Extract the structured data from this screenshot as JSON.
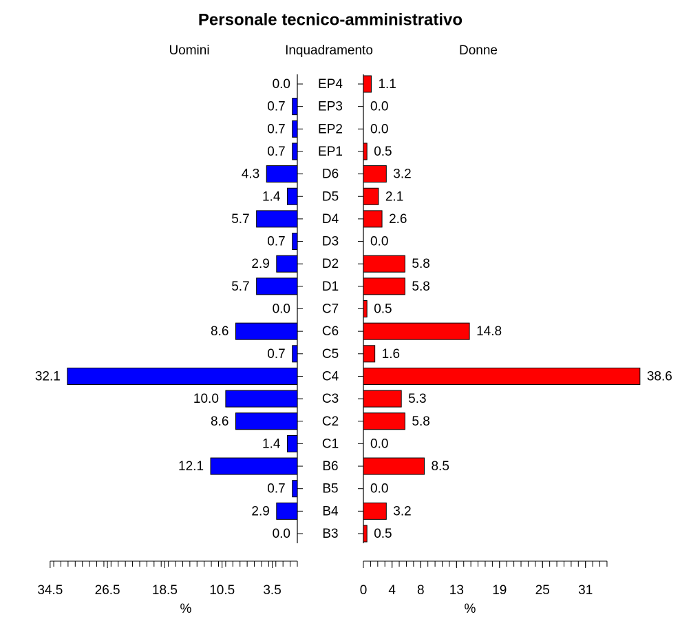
{
  "chart_data": {
    "type": "pyramid",
    "title": "Personale tecnico-amministrativo",
    "category_label": "Inquadramento",
    "categories": [
      "EP4",
      "EP3",
      "EP2",
      "EP1",
      "D6",
      "D5",
      "D4",
      "D3",
      "D2",
      "D1",
      "C7",
      "C6",
      "C5",
      "C4",
      "C3",
      "C2",
      "C1",
      "B6",
      "B5",
      "B4",
      "B3"
    ],
    "minor_tick_step": 1,
    "series": [
      {
        "name": "Uomini",
        "side": "left",
        "color": "#0000ff",
        "values": [
          0.0,
          0.7,
          0.7,
          0.7,
          4.3,
          1.4,
          5.7,
          0.7,
          2.9,
          5.7,
          0.0,
          8.6,
          0.7,
          32.1,
          10.0,
          8.6,
          1.4,
          12.1,
          0.7,
          2.9,
          0.0
        ],
        "value_labels": [
          "0.0",
          "0.7",
          "0.7",
          "0.7",
          "4.3",
          "1.4",
          "5.7",
          "0.7",
          "2.9",
          "5.7",
          "0.0",
          "8.6",
          "0.7",
          "32.1",
          "10.0",
          "8.6",
          "1.4",
          "12.1",
          "0.7",
          "2.9",
          "0.0"
        ],
        "xlim": [
          0,
          34.5
        ],
        "xticks": [
          34.5,
          26.5,
          18.5,
          10.5,
          3.5
        ],
        "xlabel": "%"
      },
      {
        "name": "Donne",
        "side": "right",
        "color": "#ff0000",
        "values": [
          1.1,
          0.0,
          0.0,
          0.5,
          3.2,
          2.1,
          2.6,
          0.0,
          5.8,
          5.8,
          0.5,
          14.8,
          1.6,
          38.6,
          5.3,
          5.8,
          0.0,
          8.5,
          0.0,
          3.2,
          0.5
        ],
        "value_labels": [
          "1.1",
          "0.0",
          "0.0",
          "0.5",
          "3.2",
          "2.1",
          "2.6",
          "0.0",
          "5.8",
          "5.8",
          "0.5",
          "14.8",
          "1.6",
          "38.6",
          "5.3",
          "5.8",
          "0.0",
          "8.5",
          "0.0",
          "3.2",
          "0.5"
        ],
        "xlim": [
          0,
          34
        ],
        "xticks": [
          0,
          4,
          8,
          13,
          19,
          25,
          31
        ],
        "xlabel": "%"
      }
    ]
  }
}
